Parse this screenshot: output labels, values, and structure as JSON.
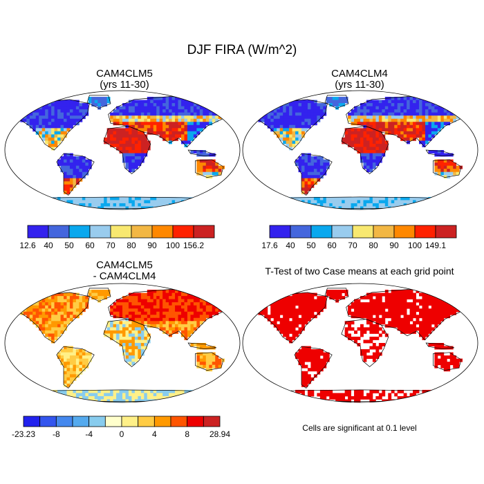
{
  "main_title": "DJF FIRA (W/m^2)",
  "panels": [
    {
      "title_line1": "CAM4CLM5",
      "title_line2": "(yrs 11-30)"
    },
    {
      "title_line1": "CAM4CLM4",
      "title_line2": "(yrs 11-30)"
    },
    {
      "title_line1": "CAM4CLM5",
      "title_line2": "- CAM4CLM4"
    },
    {
      "title_line1": "T-Test of two Case means at each grid point",
      "title_line2": ""
    }
  ],
  "ttest_note": "Cells are significant at 0.1 level",
  "chart_data": [
    {
      "type": "heatmap",
      "title": "CAM4CLM5 (yrs 11-30)",
      "projection": "robinson",
      "colorbar": {
        "labels": [
          "12.6",
          "40",
          "50",
          "60",
          "70",
          "80",
          "90",
          "100",
          "156.2"
        ],
        "colors": [
          "#3322ee",
          "#4466dd",
          "#0aa8ee",
          "#99ccee",
          "#f8e870",
          "#f2b744",
          "#ff8800",
          "#ff2200",
          "#cc2222"
        ]
      }
    },
    {
      "type": "heatmap",
      "title": "CAM4CLM4 (yrs 11-30)",
      "projection": "robinson",
      "colorbar": {
        "labels": [
          "17.6",
          "40",
          "50",
          "60",
          "70",
          "80",
          "90",
          "100",
          "149.1"
        ],
        "colors": [
          "#3322ee",
          "#4466dd",
          "#0aa8ee",
          "#99ccee",
          "#f8e870",
          "#f2b744",
          "#ff8800",
          "#ff2200",
          "#cc2222"
        ]
      }
    },
    {
      "type": "heatmap",
      "title": "CAM4CLM5 - CAM4CLM4",
      "projection": "robinson",
      "colorbar": {
        "labels": [
          "-23.23",
          "-8",
          "-4",
          "0",
          "4",
          "8",
          "28.94"
        ],
        "colors": [
          "#2222ee",
          "#3355ee",
          "#4488ee",
          "#55aaee",
          "#88ccee",
          "#ffffcc",
          "#fff088",
          "#ffcc44",
          "#ff9900",
          "#ff5500",
          "#ee0000",
          "#cc2222"
        ]
      }
    },
    {
      "type": "heatmap",
      "title": "T-Test of two Case means at each grid point",
      "projection": "robinson",
      "fill_color": "#ee0000"
    }
  ]
}
